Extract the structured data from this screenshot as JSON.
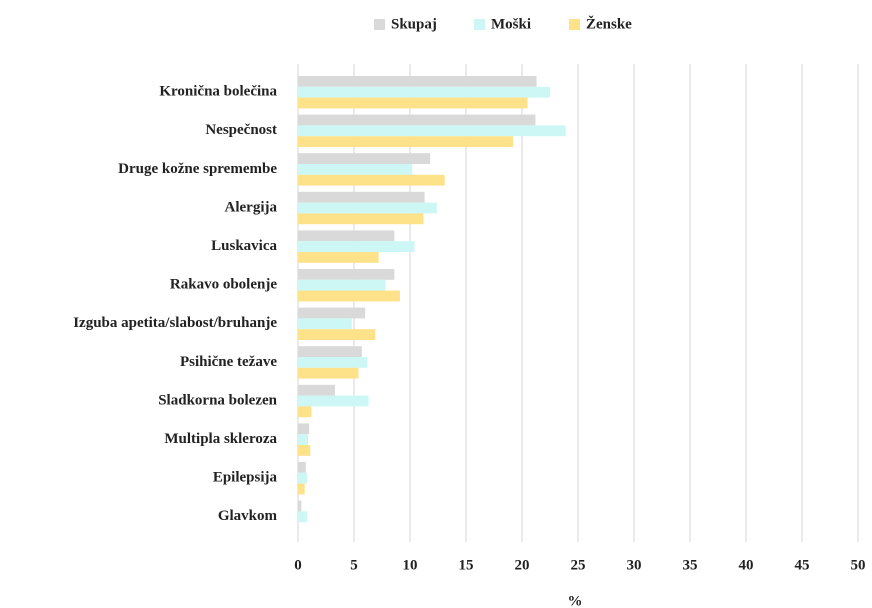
{
  "chart_data": {
    "type": "hbar",
    "x_label": "%",
    "categories": [
      "Kronična bolečina",
      "Nespečnost",
      "Druge kožne spremembe",
      "Alergija",
      "Luskavica",
      "Rakavo obolenje",
      "Izguba apetita/slabost/bruhanje",
      "Psihične težave",
      "Sladkorna bolezen",
      "Multipla skleroza",
      "Epilepsija",
      "Glavkom"
    ],
    "series": [
      {
        "name": "Skupaj",
        "color": "#d9d9d9",
        "values": [
          21.3,
          21.2,
          11.8,
          11.3,
          8.6,
          8.6,
          6.0,
          5.7,
          3.3,
          1.0,
          0.7,
          0.3
        ]
      },
      {
        "name": "Moški",
        "color": "#ccf7f4",
        "values": [
          22.5,
          23.9,
          10.2,
          12.4,
          10.4,
          7.8,
          4.8,
          6.2,
          6.3,
          0.9,
          0.8,
          0.8
        ]
      },
      {
        "name": "Ženske",
        "color": "#fde28a",
        "values": [
          20.5,
          19.2,
          13.1,
          11.2,
          7.2,
          9.1,
          6.9,
          5.4,
          1.2,
          1.1,
          0.6,
          0
        ]
      }
    ],
    "xlim": [
      0,
      50
    ],
    "xticks": [
      0,
      5,
      10,
      15,
      20,
      25,
      30,
      35,
      40,
      45,
      50
    ],
    "grid": true,
    "legend": "top"
  }
}
